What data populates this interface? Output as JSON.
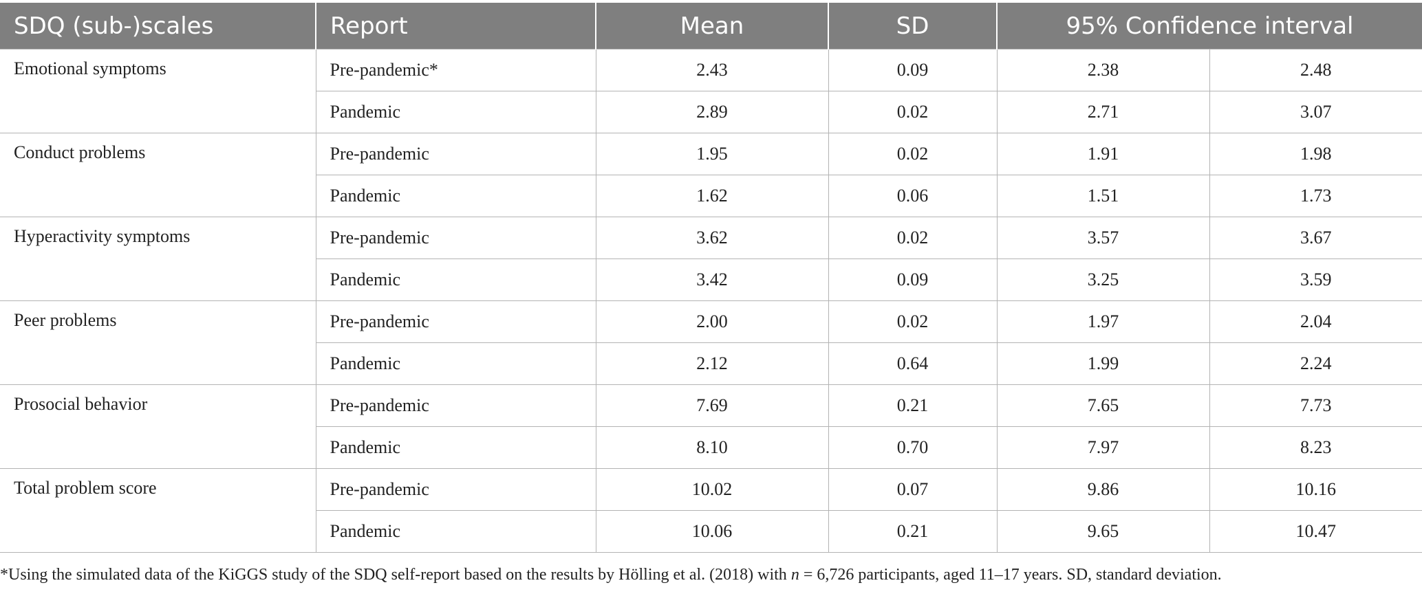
{
  "header": {
    "scales": "SDQ (sub-)scales",
    "report": "Report",
    "mean": "Mean",
    "sd": "SD",
    "ci": "95% Confidence interval"
  },
  "groups": [
    {
      "scale": "Emotional symptoms",
      "rows": [
        {
          "report": "Pre-pandemic*",
          "mean": "2.43",
          "sd": "0.09",
          "ci_low": "2.38",
          "ci_high": "2.48"
        },
        {
          "report": "Pandemic",
          "mean": "2.89",
          "sd": "0.02",
          "ci_low": "2.71",
          "ci_high": "3.07"
        }
      ]
    },
    {
      "scale": "Conduct problems",
      "rows": [
        {
          "report": "Pre-pandemic",
          "mean": "1.95",
          "sd": "0.02",
          "ci_low": "1.91",
          "ci_high": "1.98"
        },
        {
          "report": "Pandemic",
          "mean": "1.62",
          "sd": "0.06",
          "ci_low": "1.51",
          "ci_high": "1.73"
        }
      ]
    },
    {
      "scale": "Hyperactivity symptoms",
      "rows": [
        {
          "report": "Pre-pandemic",
          "mean": "3.62",
          "sd": "0.02",
          "ci_low": "3.57",
          "ci_high": "3.67"
        },
        {
          "report": "Pandemic",
          "mean": "3.42",
          "sd": "0.09",
          "ci_low": "3.25",
          "ci_high": "3.59"
        }
      ]
    },
    {
      "scale": "Peer problems",
      "rows": [
        {
          "report": "Pre-pandemic",
          "mean": "2.00",
          "sd": "0.02",
          "ci_low": "1.97",
          "ci_high": "2.04"
        },
        {
          "report": "Pandemic",
          "mean": "2.12",
          "sd": "0.64",
          "ci_low": "1.99",
          "ci_high": "2.24"
        }
      ]
    },
    {
      "scale": "Prosocial behavior",
      "rows": [
        {
          "report": "Pre-pandemic",
          "mean": "7.69",
          "sd": "0.21",
          "ci_low": "7.65",
          "ci_high": "7.73"
        },
        {
          "report": "Pandemic",
          "mean": "8.10",
          "sd": "0.70",
          "ci_low": "7.97",
          "ci_high": "8.23"
        }
      ]
    },
    {
      "scale": "Total problem score",
      "rows": [
        {
          "report": "Pre-pandemic",
          "mean": "10.02",
          "sd": "0.07",
          "ci_low": "9.86",
          "ci_high": "10.16"
        },
        {
          "report": "Pandemic",
          "mean": "10.06",
          "sd": "0.21",
          "ci_low": "9.65",
          "ci_high": "10.47"
        }
      ]
    }
  ],
  "footnote": {
    "part1": "*Using the simulated data of the KiGGS study of the SDQ self-report based on the results by Hölling et al. (2018) with ",
    "n_symbol": "n",
    "part2": " = 6,726 participants, aged 11–17 years. SD, standard deviation."
  }
}
